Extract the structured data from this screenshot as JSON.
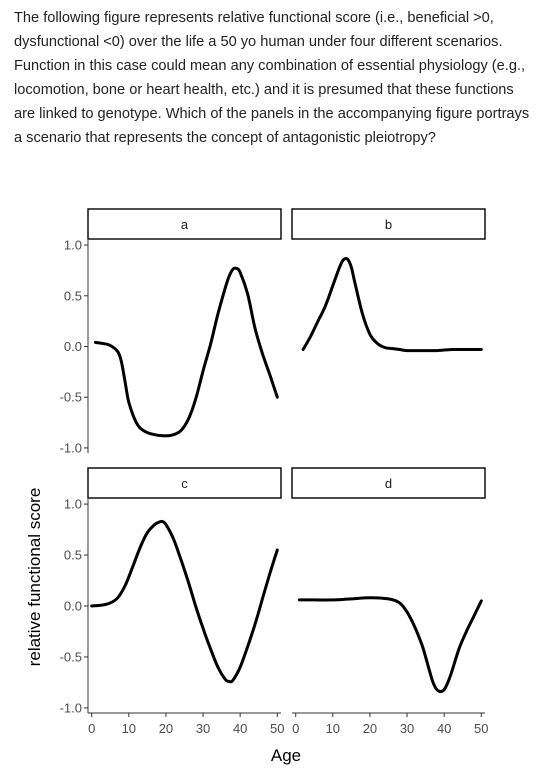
{
  "question": {
    "text": "The following figure represents relative functional score (i.e., beneficial >0, dysfunctional <0) over the life a 50 yo human under four different scenarios. Function in this case could mean any combination of essential physiology  (e.g., locomotion, bone or heart health,  etc.) and it is presumed that these functions are linked to genotype.  Which of the panels in the accompanying figure portrays a scenario that represents the concept of antagonistic pleiotropy?"
  },
  "chart_data": {
    "type": "line",
    "layout": "facet-grid-2x2",
    "xlabel": "Age",
    "ylabel": "relative functional score",
    "xlim": [
      -1,
      51
    ],
    "ylim": [
      -1.05,
      1.05
    ],
    "x_ticks": [
      0,
      10,
      20,
      30,
      40,
      50
    ],
    "y_ticks": [
      -1.0,
      -0.5,
      0.0,
      0.5,
      1.0
    ],
    "y_tick_labels": [
      "-1.0",
      "-0.5",
      "0.0",
      "0.5",
      "1.0"
    ],
    "x_tick_labels": [
      "0",
      "10",
      "20",
      "30",
      "40",
      "50"
    ],
    "grid": false,
    "panels": [
      {
        "label": "a",
        "x": [
          1,
          3,
          5,
          7,
          8,
          9,
          10,
          12,
          14,
          17,
          20,
          22,
          24,
          26,
          28,
          30,
          32,
          34,
          36,
          37,
          38,
          39,
          40,
          42,
          44,
          46,
          48,
          50
        ],
        "y": [
          0.04,
          0.03,
          0.01,
          -0.05,
          -0.15,
          -0.35,
          -0.55,
          -0.75,
          -0.83,
          -0.87,
          -0.88,
          -0.87,
          -0.83,
          -0.72,
          -0.52,
          -0.24,
          0.02,
          0.32,
          0.58,
          0.69,
          0.76,
          0.77,
          0.73,
          0.52,
          0.18,
          -0.07,
          -0.28,
          -0.5
        ]
      },
      {
        "label": "b",
        "x": [
          2,
          4,
          6,
          8,
          10,
          12,
          13,
          14,
          15,
          16,
          18,
          20,
          22,
          24,
          26,
          28,
          30,
          34,
          38,
          42,
          46,
          50
        ],
        "y": [
          -0.03,
          0.1,
          0.25,
          0.4,
          0.6,
          0.8,
          0.86,
          0.86,
          0.78,
          0.62,
          0.32,
          0.12,
          0.03,
          -0.01,
          -0.02,
          -0.03,
          -0.04,
          -0.04,
          -0.04,
          -0.03,
          -0.03,
          -0.03
        ]
      },
      {
        "label": "c",
        "x": [
          0,
          3,
          5,
          7,
          9,
          11,
          13,
          15,
          17,
          18,
          19,
          20,
          22,
          24,
          26,
          28,
          30,
          32,
          34,
          36,
          37,
          38,
          40,
          42,
          44,
          46,
          48,
          50
        ],
        "y": [
          0.0,
          0.01,
          0.03,
          0.08,
          0.2,
          0.38,
          0.57,
          0.72,
          0.8,
          0.82,
          0.83,
          0.8,
          0.66,
          0.46,
          0.24,
          0.0,
          -0.22,
          -0.42,
          -0.6,
          -0.72,
          -0.74,
          -0.73,
          -0.6,
          -0.4,
          -0.18,
          0.07,
          0.32,
          0.55
        ]
      },
      {
        "label": "d",
        "x": [
          1,
          5,
          10,
          15,
          20,
          25,
          28,
          30,
          32,
          34,
          35,
          36,
          37,
          38,
          39,
          40,
          41,
          42,
          44,
          46,
          48,
          50
        ],
        "y": [
          0.06,
          0.06,
          0.06,
          0.07,
          0.08,
          0.07,
          0.03,
          -0.06,
          -0.2,
          -0.38,
          -0.5,
          -0.63,
          -0.75,
          -0.82,
          -0.84,
          -0.82,
          -0.75,
          -0.65,
          -0.42,
          -0.25,
          -0.1,
          0.05
        ]
      }
    ]
  }
}
